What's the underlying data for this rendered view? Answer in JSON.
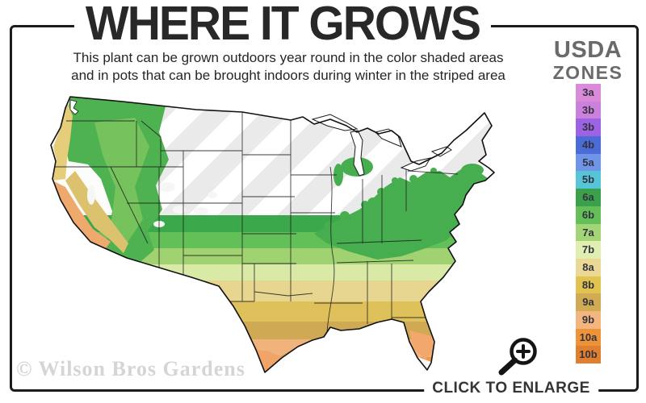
{
  "header": {
    "title": "WHERE IT GROWS",
    "subtitle_line1": "This plant can be grown outdoors year round in the color shaded areas",
    "subtitle_line2": "and in pots that can be brought indoors during winter in the striped area"
  },
  "legend": {
    "title_line1": "USDA",
    "title_line2": "ZONES",
    "zones": [
      {
        "label": "3a",
        "color": "#d98bd9"
      },
      {
        "label": "3b",
        "color": "#cb81dc"
      },
      {
        "label": "3b",
        "color": "#9c64e4"
      },
      {
        "label": "4b",
        "color": "#4b6cd6"
      },
      {
        "label": "5a",
        "color": "#6f95e8"
      },
      {
        "label": "5b",
        "color": "#55c5d7"
      },
      {
        "label": "6a",
        "color": "#3ba04b"
      },
      {
        "label": "6b",
        "color": "#65bf58"
      },
      {
        "label": "7a",
        "color": "#a3d577"
      },
      {
        "label": "7b",
        "color": "#e0eeb2"
      },
      {
        "label": "8a",
        "color": "#ead894"
      },
      {
        "label": "8b",
        "color": "#e2c34f"
      },
      {
        "label": "9a",
        "color": "#d0ab53"
      },
      {
        "label": "9b",
        "color": "#f2b67e"
      },
      {
        "label": "10a",
        "color": "#ee9338"
      },
      {
        "label": "10b",
        "color": "#e0802f"
      }
    ]
  },
  "watermark": {
    "text": "© Wilson Bros Gardens"
  },
  "cta": {
    "label": "CLICK TO ENLARGE",
    "icon": "magnifier-zoom-in-icon"
  }
}
